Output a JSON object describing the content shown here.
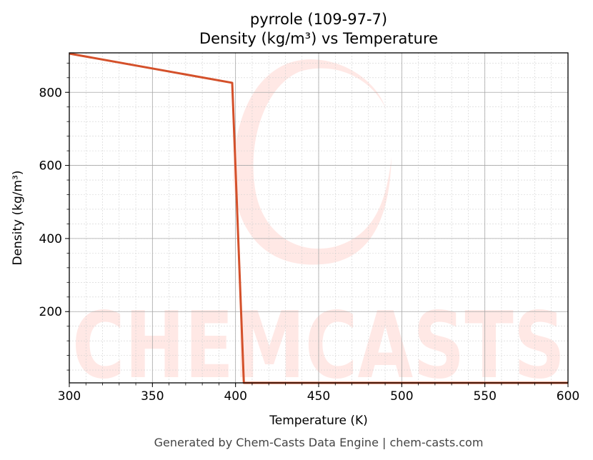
{
  "chart_data": {
    "type": "line",
    "title": "pyrrole (109-97-7)",
    "subtitle": "Density (kg/m³) vs Temperature",
    "xlabel": "Temperature (K)",
    "ylabel": "Density (kg/m³)",
    "xlim": [
      300,
      600
    ],
    "ylim": [
      5,
      908
    ],
    "xticks": [
      300,
      350,
      400,
      450,
      500,
      550,
      600
    ],
    "yticks": [
      200,
      400,
      600,
      800
    ],
    "grid": true,
    "legend": "none",
    "series": [
      {
        "color": "#d4502a",
        "x": [
          300,
          398,
          405,
          600
        ],
        "y": [
          906,
          826,
          5,
          5
        ]
      }
    ],
    "watermark": "CHEMCASTS"
  },
  "footer": "Generated by Chem-Casts Data Engine | chem-casts.com"
}
